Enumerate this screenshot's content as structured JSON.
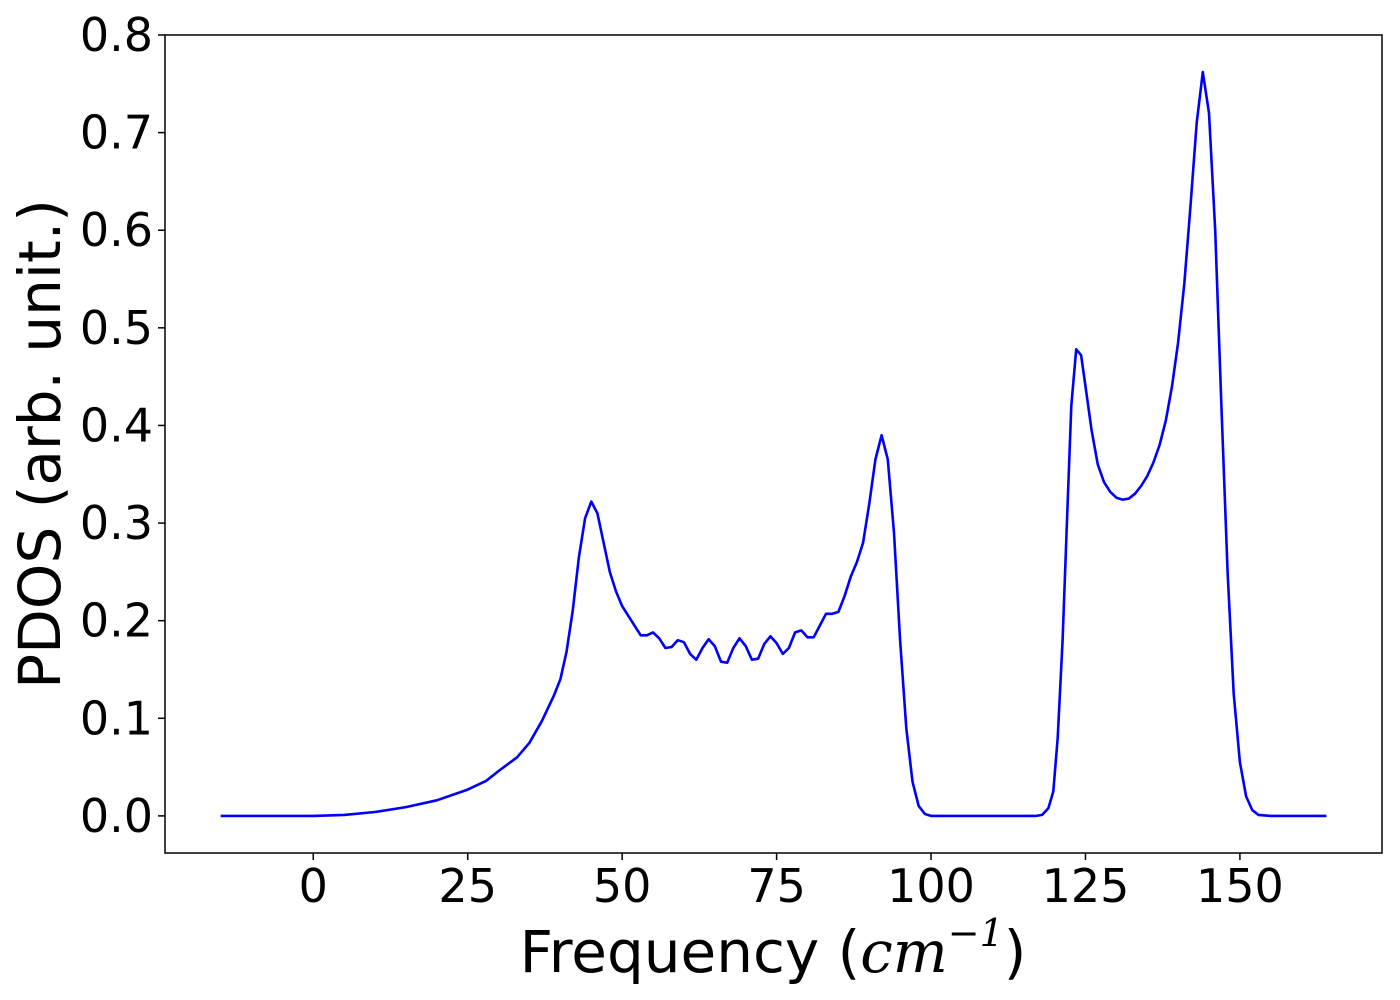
{
  "chart_data": {
    "type": "line",
    "title": "",
    "xlabel": "Frequency",
    "xlabel_unit": "cm",
    "xlabel_unit_exponent": "−1",
    "ylabel": "PDOS (arb. unit.)",
    "xlim": [
      -24,
      173
    ],
    "ylim": [
      -0.038,
      0.8
    ],
    "x_ticks": [
      0,
      25,
      50,
      75,
      100,
      125,
      150
    ],
    "x_tick_labels": [
      "0",
      "25",
      "50",
      "75",
      "100",
      "125",
      "150"
    ],
    "y_ticks": [
      0.0,
      0.1,
      0.2,
      0.3,
      0.4,
      0.5,
      0.6,
      0.7,
      0.8
    ],
    "y_tick_labels": [
      "0.0",
      "0.1",
      "0.2",
      "0.3",
      "0.4",
      "0.5",
      "0.6",
      "0.7",
      "0.8"
    ],
    "grid": false,
    "legend": "none",
    "series": [
      {
        "color": "#0000ff",
        "points": [
          [
            -15,
            0.0
          ],
          [
            0,
            0.0
          ],
          [
            5,
            0.001
          ],
          [
            10,
            0.004
          ],
          [
            15,
            0.009
          ],
          [
            20,
            0.016
          ],
          [
            25,
            0.027
          ],
          [
            28,
            0.036
          ],
          [
            30,
            0.046
          ],
          [
            33,
            0.06
          ],
          [
            35,
            0.075
          ],
          [
            37,
            0.097
          ],
          [
            39,
            0.124
          ],
          [
            40,
            0.14
          ],
          [
            41,
            0.168
          ],
          [
            42,
            0.21
          ],
          [
            43,
            0.265
          ],
          [
            44,
            0.305
          ],
          [
            45,
            0.322
          ],
          [
            46,
            0.31
          ],
          [
            47,
            0.28
          ],
          [
            48,
            0.25
          ],
          [
            49,
            0.23
          ],
          [
            50,
            0.215
          ],
          [
            51,
            0.205
          ],
          [
            52,
            0.195
          ],
          [
            53,
            0.185
          ],
          [
            54,
            0.185
          ],
          [
            55,
            0.188
          ],
          [
            56,
            0.182
          ],
          [
            57,
            0.172
          ],
          [
            58,
            0.173
          ],
          [
            59,
            0.18
          ],
          [
            60,
            0.178
          ],
          [
            61,
            0.166
          ],
          [
            62,
            0.16
          ],
          [
            63,
            0.172
          ],
          [
            64,
            0.181
          ],
          [
            65,
            0.174
          ],
          [
            66,
            0.158
          ],
          [
            67,
            0.157
          ],
          [
            68,
            0.172
          ],
          [
            69,
            0.182
          ],
          [
            70,
            0.174
          ],
          [
            71,
            0.16
          ],
          [
            72,
            0.161
          ],
          [
            73,
            0.176
          ],
          [
            74,
            0.184
          ],
          [
            75,
            0.177
          ],
          [
            76,
            0.166
          ],
          [
            77,
            0.172
          ],
          [
            78,
            0.188
          ],
          [
            79,
            0.19
          ],
          [
            80,
            0.183
          ],
          [
            81,
            0.183
          ],
          [
            82,
            0.195
          ],
          [
            83,
            0.207
          ],
          [
            84,
            0.207
          ],
          [
            85,
            0.209
          ],
          [
            86,
            0.225
          ],
          [
            87,
            0.245
          ],
          [
            88,
            0.26
          ],
          [
            89,
            0.28
          ],
          [
            90,
            0.32
          ],
          [
            91,
            0.365
          ],
          [
            92,
            0.39
          ],
          [
            93,
            0.365
          ],
          [
            94,
            0.29
          ],
          [
            95,
            0.18
          ],
          [
            96,
            0.09
          ],
          [
            97,
            0.035
          ],
          [
            98,
            0.01
          ],
          [
            99,
            0.002
          ],
          [
            100,
            0.0
          ],
          [
            105,
            0.0
          ],
          [
            110,
            0.0
          ],
          [
            115,
            0.0
          ],
          [
            117,
            0.0
          ],
          [
            118,
            0.001
          ],
          [
            119,
            0.008
          ],
          [
            119.8,
            0.025
          ],
          [
            120.5,
            0.08
          ],
          [
            121.3,
            0.18
          ],
          [
            122,
            0.3
          ],
          [
            122.7,
            0.42
          ],
          [
            123.5,
            0.478
          ],
          [
            124.3,
            0.472
          ],
          [
            125,
            0.44
          ],
          [
            126,
            0.395
          ],
          [
            127,
            0.36
          ],
          [
            128,
            0.342
          ],
          [
            129,
            0.332
          ],
          [
            130,
            0.326
          ],
          [
            131,
            0.324
          ],
          [
            132,
            0.325
          ],
          [
            133,
            0.33
          ],
          [
            134,
            0.338
          ],
          [
            135,
            0.348
          ],
          [
            136,
            0.362
          ],
          [
            137,
            0.38
          ],
          [
            138,
            0.405
          ],
          [
            139,
            0.44
          ],
          [
            140,
            0.485
          ],
          [
            141,
            0.545
          ],
          [
            142,
            0.625
          ],
          [
            143,
            0.71
          ],
          [
            144,
            0.762
          ],
          [
            145,
            0.72
          ],
          [
            146,
            0.6
          ],
          [
            147,
            0.42
          ],
          [
            148,
            0.25
          ],
          [
            149,
            0.125
          ],
          [
            150,
            0.055
          ],
          [
            151,
            0.02
          ],
          [
            152,
            0.006
          ],
          [
            153,
            0.001
          ],
          [
            155,
            0.0
          ],
          [
            160,
            0.0
          ],
          [
            164,
            0.0
          ]
        ]
      }
    ]
  }
}
